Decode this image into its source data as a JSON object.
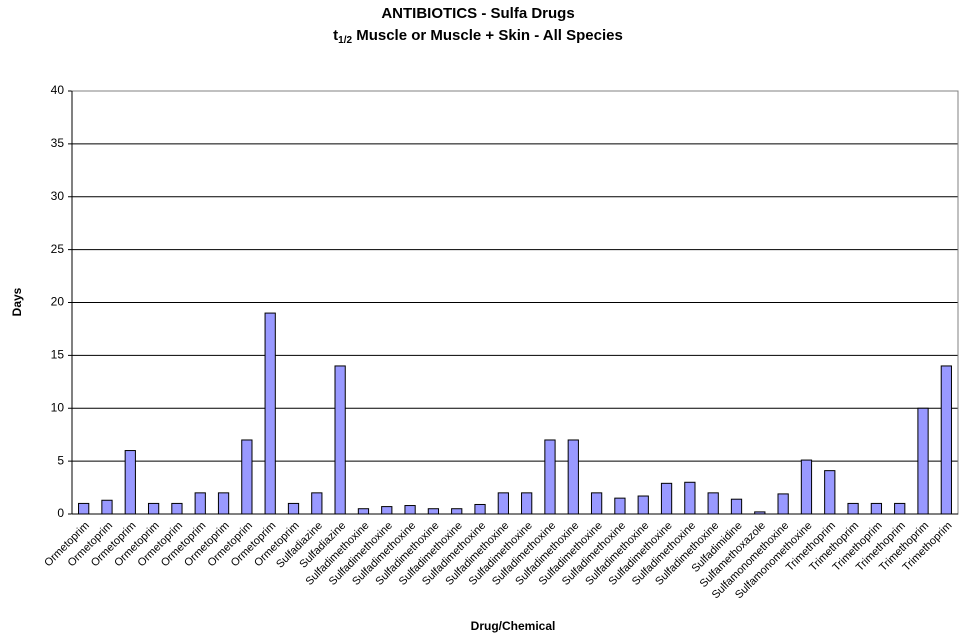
{
  "chart_data": {
    "type": "bar",
    "title": "ANTIBIOTICS - Sulfa Drugs",
    "subtitle": {
      "main": "t",
      "sub": "1/2",
      "rest": " Muscle or Muscle + Skin - All Species"
    },
    "x_label": "Drug/Chemical",
    "y_label": "Days",
    "categories": [
      "Ormetoprim",
      "Ormetoprim",
      "Ormetoprim",
      "Ormetoprim",
      "Ormetoprim",
      "Ormetoprim",
      "Ormetoprim",
      "Ormetoprim",
      "Ormetoprim",
      "Ormetoprim",
      "Sulfadiazine",
      "Sulfadiazine",
      "Sulfadimethoxine",
      "Sulfadimethoxine",
      "Sulfadimethoxine",
      "Sulfadimethoxine",
      "Sulfadimethoxine",
      "Sulfadimethoxine",
      "Sulfadimethoxine",
      "Sulfadimethoxine",
      "Sulfadimethoxine",
      "Sulfadimethoxine",
      "Sulfadimethoxine",
      "Sulfadimethoxine",
      "Sulfadimethoxine",
      "Sulfadimethoxine",
      "Sulfadimethoxine",
      "Sulfadimethoxine",
      "Sulfadimidine",
      "Sulfamethoxazole",
      "Sulfamonomethoxine",
      "Sulfamonomethoxine",
      "Trimethoprim",
      "Trimethoprim",
      "Trimethoprim",
      "Trimethoprim",
      "Trimethoprim",
      "Trimethoprim"
    ],
    "values": [
      1,
      1.3,
      6,
      1,
      1,
      2,
      2,
      7,
      19,
      1,
      2,
      14,
      0.5,
      0.7,
      0.8,
      0.5,
      0.5,
      0.9,
      2,
      2,
      7,
      7,
      2,
      1.5,
      1.7,
      2.9,
      3,
      2,
      1.4,
      0.2,
      1.9,
      5.1,
      4.1,
      1,
      1,
      1,
      10,
      14
    ],
    "color": "#9999ff",
    "ylim": [
      0,
      40
    ],
    "yticks": [
      0,
      5,
      10,
      15,
      20,
      25,
      30,
      35,
      40
    ],
    "grid": true
  }
}
